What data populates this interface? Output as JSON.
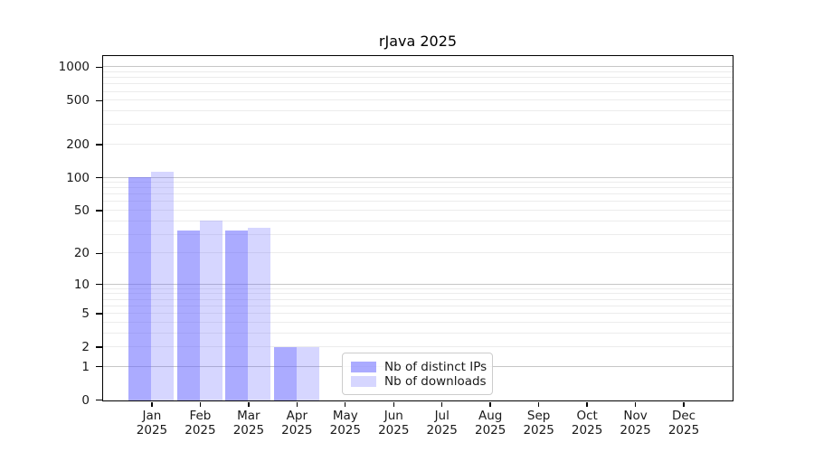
{
  "chart_data": {
    "type": "bar",
    "title": "rJava 2025",
    "categories": [
      "Jan",
      "Feb",
      "Mar",
      "Apr",
      "May",
      "Jun",
      "Jul",
      "Aug",
      "Sep",
      "Oct",
      "Nov",
      "Dec"
    ],
    "year_label": "2025",
    "series": [
      {
        "name": "Nb of distinct IPs",
        "color": "rgba(102,102,255,0.55)",
        "values": [
          103,
          33,
          33,
          2,
          0,
          0,
          0,
          0,
          0,
          0,
          0,
          0
        ]
      },
      {
        "name": "Nb of downloads",
        "color": "rgba(102,102,255,0.27)",
        "values": [
          115,
          41,
          35,
          2,
          0,
          0,
          0,
          0,
          0,
          0,
          0,
          0
        ]
      }
    ],
    "y_scale": "log1p",
    "ylim": [
      0,
      1250
    ],
    "y_ticks": [
      0,
      1,
      2,
      5,
      10,
      20,
      50,
      100,
      200,
      500,
      1000
    ],
    "grid_major": [
      1,
      10,
      100,
      1000
    ],
    "grid_minor": [
      2,
      3,
      4,
      5,
      6,
      7,
      8,
      9,
      20,
      30,
      40,
      50,
      60,
      70,
      80,
      90,
      200,
      300,
      400,
      500,
      600,
      700,
      800,
      900
    ],
    "legend_position": "inside-bottom-center",
    "colors": {
      "grid_major": "#c6c6c6",
      "grid_minor": "#ececec",
      "spine": "#000000",
      "text": "#1a1a1a"
    }
  }
}
